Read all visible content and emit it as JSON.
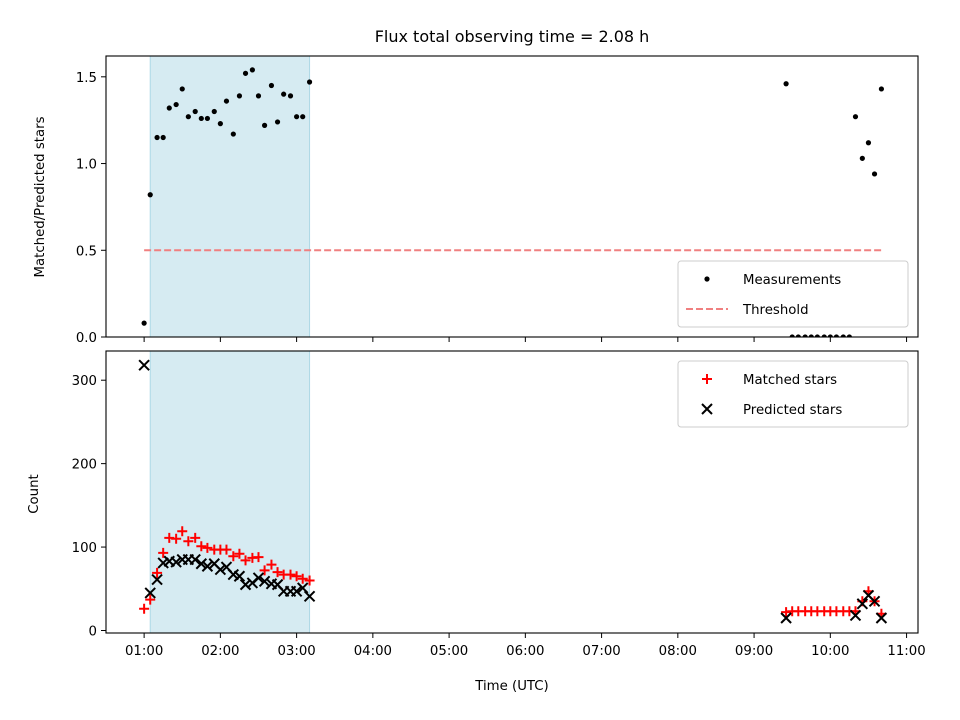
{
  "chart_data": [
    {
      "type": "scatter",
      "title": "Flux total observing time = 2.08 h",
      "xlabel": "",
      "ylabel": "Matched/Predicted stars",
      "ylim": [
        0,
        1.62
      ],
      "yticks": [
        0.0,
        0.5,
        1.0,
        1.5
      ],
      "ytick_labels": [
        "0.0",
        "0.5",
        "1.0",
        "1.5"
      ],
      "xlim": [
        0.5,
        11.15
      ],
      "xticks": [
        1,
        2,
        3,
        4,
        5,
        6,
        7,
        8,
        9,
        10,
        11
      ],
      "legend_position": "lower-right",
      "shaded_interval": {
        "x": [
          1.08,
          3.17
        ],
        "color": "#add8e6"
      },
      "series": [
        {
          "name": "Measurements",
          "marker": "dot",
          "color": "#000000",
          "x": [
            1.0,
            1.08,
            1.17,
            1.25,
            1.33,
            1.42,
            1.5,
            1.58,
            1.67,
            1.75,
            1.83,
            1.92,
            2.0,
            2.08,
            2.17,
            2.25,
            2.33,
            2.42,
            2.5,
            2.58,
            2.67,
            2.75,
            2.83,
            2.92,
            3.0,
            3.08,
            3.17,
            9.42,
            9.5,
            9.58,
            9.67,
            9.75,
            9.83,
            9.92,
            10.0,
            10.08,
            10.17,
            10.25,
            10.33,
            10.42,
            10.5,
            10.58,
            10.67
          ],
          "y": [
            0.08,
            0.82,
            1.15,
            1.15,
            1.32,
            1.34,
            1.43,
            1.27,
            1.3,
            1.26,
            1.26,
            1.3,
            1.23,
            1.36,
            1.17,
            1.39,
            1.52,
            1.54,
            1.39,
            1.22,
            1.45,
            1.24,
            1.4,
            1.39,
            1.27,
            1.27,
            1.47,
            1.46,
            0.0,
            0.0,
            0.0,
            0.0,
            0.0,
            0.0,
            0.0,
            0.0,
            0.0,
            0.0,
            1.27,
            1.03,
            1.12,
            0.94,
            1.43
          ]
        },
        {
          "name": "Threshold",
          "marker": "dashed-line",
          "color": "#f08080",
          "x": [
            1.0,
            10.67
          ],
          "y": [
            0.5,
            0.5
          ]
        }
      ]
    },
    {
      "type": "scatter",
      "title": "",
      "xlabel": "Time (UTC)",
      "ylabel": "Count",
      "ylim": [
        -3,
        335
      ],
      "yticks": [
        0,
        100,
        200,
        300
      ],
      "ytick_labels": [
        "0",
        "100",
        "200",
        "300"
      ],
      "xlim": [
        0.5,
        11.15
      ],
      "xticks": [
        1,
        2,
        3,
        4,
        5,
        6,
        7,
        8,
        9,
        10,
        11
      ],
      "xtick_labels": [
        "01:00",
        "02:00",
        "03:00",
        "04:00",
        "05:00",
        "06:00",
        "07:00",
        "08:00",
        "09:00",
        "10:00",
        "11:00"
      ],
      "legend_position": "top-right",
      "shaded_interval": {
        "x": [
          1.08,
          3.17
        ],
        "color": "#add8e6"
      },
      "series": [
        {
          "name": "Matched stars",
          "marker": "plus",
          "color": "#ff0000",
          "x": [
            1.0,
            1.08,
            1.17,
            1.25,
            1.33,
            1.42,
            1.5,
            1.58,
            1.67,
            1.75,
            1.83,
            1.92,
            2.0,
            2.08,
            2.17,
            2.25,
            2.33,
            2.42,
            2.5,
            2.58,
            2.67,
            2.75,
            2.83,
            2.92,
            3.0,
            3.08,
            3.17,
            9.42,
            9.5,
            9.58,
            9.67,
            9.75,
            9.83,
            9.92,
            10.0,
            10.08,
            10.17,
            10.25,
            10.33,
            10.42,
            10.5,
            10.58,
            10.67
          ],
          "y": [
            26,
            37,
            69,
            93,
            111,
            110,
            119,
            107,
            111,
            101,
            99,
            97,
            97,
            97,
            89,
            92,
            84,
            87,
            88,
            72,
            79,
            70,
            67,
            67,
            65,
            62,
            60,
            22,
            23,
            23,
            23,
            23,
            23,
            23,
            23,
            23,
            23,
            23,
            23,
            35,
            47,
            35,
            20
          ]
        },
        {
          "name": "Predicted stars",
          "marker": "x",
          "color": "#000000",
          "x": [
            1.0,
            1.08,
            1.17,
            1.25,
            1.33,
            1.42,
            1.5,
            1.58,
            1.67,
            1.75,
            1.83,
            1.92,
            2.0,
            2.08,
            2.17,
            2.25,
            2.33,
            2.42,
            2.5,
            2.58,
            2.67,
            2.75,
            2.83,
            2.92,
            3.0,
            3.08,
            3.17,
            9.42,
            10.33,
            10.42,
            10.5,
            10.58,
            10.67
          ],
          "y": [
            318,
            45,
            61,
            81,
            83,
            82,
            85,
            85,
            85,
            80,
            77,
            80,
            73,
            76,
            67,
            65,
            55,
            57,
            63,
            59,
            56,
            55,
            47,
            47,
            47,
            51,
            41,
            15,
            18,
            32,
            42,
            35,
            15
          ]
        }
      ]
    }
  ]
}
